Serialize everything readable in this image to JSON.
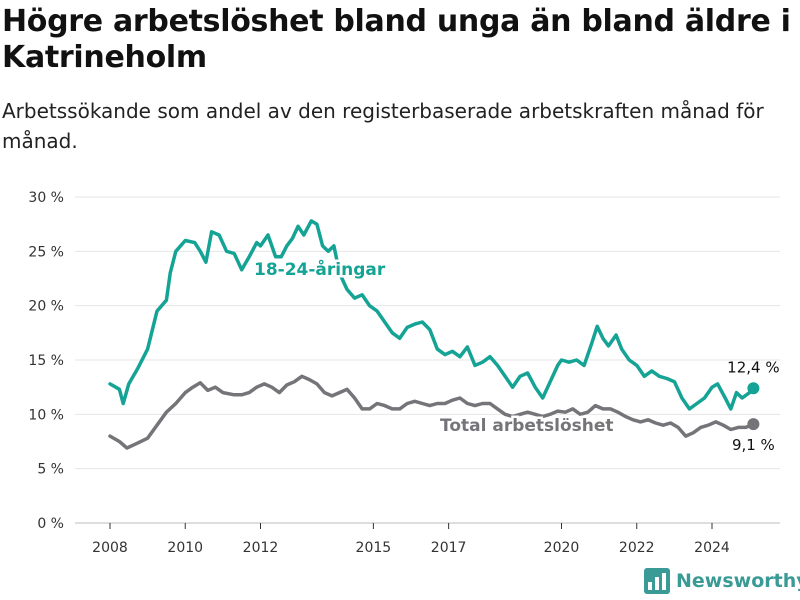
{
  "title": "Högre arbetslöshet bland unga än bland äldre i Katrineholm",
  "subtitle": "Arbetssökande som andel av den registerbaserade arbetskraften månad för månad.",
  "brand": "Newsworthy",
  "colors": {
    "youth": "#14a394",
    "total": "#757479",
    "grid": "#e6e6e6",
    "brand": "#3a9a96"
  },
  "chart_data": {
    "type": "line",
    "x_unit": "year",
    "ylim": [
      0,
      30
    ],
    "y_ticks": [
      0,
      5,
      10,
      15,
      20,
      25,
      30
    ],
    "y_tick_labels": [
      "0 %",
      "5 %",
      "10 %",
      "15 %",
      "20 %",
      "25 %",
      "30 %"
    ],
    "x_ticks": [
      2008,
      2010,
      2012,
      2015,
      2017,
      2020,
      2022,
      2024
    ],
    "x_tick_labels": [
      "2008",
      "2010",
      "2012",
      "2015",
      "2017",
      "2020",
      "2022",
      "2024"
    ],
    "grid": "horizontal",
    "series": [
      {
        "name": "18-24-åringar",
        "label": "18-24-åringar",
        "end_label": "12,4 %",
        "points": [
          [
            2008.0,
            12.8
          ],
          [
            2008.25,
            12.3
          ],
          [
            2008.35,
            11.0
          ],
          [
            2008.5,
            12.8
          ],
          [
            2008.75,
            14.3
          ],
          [
            2009.0,
            16.0
          ],
          [
            2009.25,
            19.5
          ],
          [
            2009.5,
            20.5
          ],
          [
            2009.6,
            23.0
          ],
          [
            2009.75,
            25.0
          ],
          [
            2010.0,
            26.0
          ],
          [
            2010.25,
            25.8
          ],
          [
            2010.4,
            25.0
          ],
          [
            2010.55,
            24.0
          ],
          [
            2010.7,
            26.8
          ],
          [
            2010.9,
            26.5
          ],
          [
            2011.1,
            25.0
          ],
          [
            2011.3,
            24.8
          ],
          [
            2011.5,
            23.3
          ],
          [
            2011.7,
            24.5
          ],
          [
            2011.9,
            25.8
          ],
          [
            2012.0,
            25.5
          ],
          [
            2012.2,
            26.5
          ],
          [
            2012.4,
            24.5
          ],
          [
            2012.55,
            24.5
          ],
          [
            2012.7,
            25.5
          ],
          [
            2012.85,
            26.2
          ],
          [
            2013.0,
            27.3
          ],
          [
            2013.15,
            26.5
          ],
          [
            2013.35,
            27.8
          ],
          [
            2013.5,
            27.5
          ],
          [
            2013.65,
            25.5
          ],
          [
            2013.8,
            25.0
          ],
          [
            2013.95,
            25.5
          ],
          [
            2014.1,
            23.0
          ],
          [
            2014.3,
            21.5
          ],
          [
            2014.5,
            20.7
          ],
          [
            2014.7,
            21.0
          ],
          [
            2014.9,
            20.0
          ],
          [
            2015.1,
            19.5
          ],
          [
            2015.3,
            18.5
          ],
          [
            2015.5,
            17.5
          ],
          [
            2015.7,
            17.0
          ],
          [
            2015.9,
            18.0
          ],
          [
            2016.1,
            18.3
          ],
          [
            2016.3,
            18.5
          ],
          [
            2016.5,
            17.8
          ],
          [
            2016.7,
            16.0
          ],
          [
            2016.9,
            15.5
          ],
          [
            2017.1,
            15.8
          ],
          [
            2017.3,
            15.3
          ],
          [
            2017.5,
            16.2
          ],
          [
            2017.7,
            14.5
          ],
          [
            2017.9,
            14.8
          ],
          [
            2018.1,
            15.3
          ],
          [
            2018.3,
            14.5
          ],
          [
            2018.5,
            13.5
          ],
          [
            2018.7,
            12.5
          ],
          [
            2018.9,
            13.5
          ],
          [
            2019.1,
            13.8
          ],
          [
            2019.3,
            12.5
          ],
          [
            2019.5,
            11.5
          ],
          [
            2019.7,
            13.0
          ],
          [
            2019.9,
            14.5
          ],
          [
            2020.0,
            15.0
          ],
          [
            2020.2,
            14.8
          ],
          [
            2020.4,
            15.0
          ],
          [
            2020.6,
            14.5
          ],
          [
            2020.8,
            16.5
          ],
          [
            2020.95,
            18.1
          ],
          [
            2021.1,
            17.0
          ],
          [
            2021.25,
            16.3
          ],
          [
            2021.45,
            17.3
          ],
          [
            2021.6,
            16.0
          ],
          [
            2021.8,
            15.0
          ],
          [
            2022.0,
            14.5
          ],
          [
            2022.2,
            13.5
          ],
          [
            2022.4,
            14.0
          ],
          [
            2022.6,
            13.5
          ],
          [
            2022.8,
            13.3
          ],
          [
            2023.0,
            13.0
          ],
          [
            2023.2,
            11.5
          ],
          [
            2023.4,
            10.5
          ],
          [
            2023.6,
            11.0
          ],
          [
            2023.8,
            11.5
          ],
          [
            2024.0,
            12.5
          ],
          [
            2024.15,
            12.8
          ],
          [
            2024.35,
            11.5
          ],
          [
            2024.5,
            10.5
          ],
          [
            2024.65,
            12.0
          ],
          [
            2024.8,
            11.5
          ],
          [
            2025.0,
            12.0
          ],
          [
            2025.1,
            12.4
          ]
        ]
      },
      {
        "name": "Total arbetslöshet",
        "label": "Total arbetslöshet",
        "end_label": "9,1 %",
        "points": [
          [
            2008.0,
            8.0
          ],
          [
            2008.25,
            7.5
          ],
          [
            2008.45,
            6.9
          ],
          [
            2008.7,
            7.3
          ],
          [
            2009.0,
            7.8
          ],
          [
            2009.25,
            9.0
          ],
          [
            2009.5,
            10.2
          ],
          [
            2009.75,
            11.0
          ],
          [
            2010.0,
            12.0
          ],
          [
            2010.2,
            12.5
          ],
          [
            2010.4,
            12.9
          ],
          [
            2010.6,
            12.2
          ],
          [
            2010.8,
            12.5
          ],
          [
            2011.0,
            12.0
          ],
          [
            2011.3,
            11.8
          ],
          [
            2011.5,
            11.8
          ],
          [
            2011.7,
            12.0
          ],
          [
            2011.9,
            12.5
          ],
          [
            2012.1,
            12.8
          ],
          [
            2012.3,
            12.5
          ],
          [
            2012.5,
            12.0
          ],
          [
            2012.7,
            12.7
          ],
          [
            2012.9,
            13.0
          ],
          [
            2013.1,
            13.5
          ],
          [
            2013.3,
            13.2
          ],
          [
            2013.5,
            12.8
          ],
          [
            2013.7,
            12.0
          ],
          [
            2013.9,
            11.7
          ],
          [
            2014.1,
            12.0
          ],
          [
            2014.3,
            12.3
          ],
          [
            2014.5,
            11.5
          ],
          [
            2014.7,
            10.5
          ],
          [
            2014.9,
            10.5
          ],
          [
            2015.1,
            11.0
          ],
          [
            2015.3,
            10.8
          ],
          [
            2015.5,
            10.5
          ],
          [
            2015.7,
            10.5
          ],
          [
            2015.9,
            11.0
          ],
          [
            2016.1,
            11.2
          ],
          [
            2016.3,
            11.0
          ],
          [
            2016.5,
            10.8
          ],
          [
            2016.7,
            11.0
          ],
          [
            2016.9,
            11.0
          ],
          [
            2017.1,
            11.3
          ],
          [
            2017.3,
            11.5
          ],
          [
            2017.5,
            11.0
          ],
          [
            2017.7,
            10.8
          ],
          [
            2017.9,
            11.0
          ],
          [
            2018.1,
            11.0
          ],
          [
            2018.3,
            10.5
          ],
          [
            2018.5,
            10.0
          ],
          [
            2018.7,
            9.8
          ],
          [
            2018.9,
            10.0
          ],
          [
            2019.1,
            10.2
          ],
          [
            2019.3,
            10.0
          ],
          [
            2019.5,
            9.8
          ],
          [
            2019.7,
            10.0
          ],
          [
            2019.9,
            10.3
          ],
          [
            2020.1,
            10.2
          ],
          [
            2020.3,
            10.5
          ],
          [
            2020.5,
            10.0
          ],
          [
            2020.7,
            10.2
          ],
          [
            2020.9,
            10.8
          ],
          [
            2021.1,
            10.5
          ],
          [
            2021.3,
            10.5
          ],
          [
            2021.5,
            10.2
          ],
          [
            2021.7,
            9.8
          ],
          [
            2021.9,
            9.5
          ],
          [
            2022.1,
            9.3
          ],
          [
            2022.3,
            9.5
          ],
          [
            2022.5,
            9.2
          ],
          [
            2022.7,
            9.0
          ],
          [
            2022.9,
            9.2
          ],
          [
            2023.1,
            8.8
          ],
          [
            2023.3,
            8.0
          ],
          [
            2023.5,
            8.3
          ],
          [
            2023.7,
            8.8
          ],
          [
            2023.9,
            9.0
          ],
          [
            2024.1,
            9.3
          ],
          [
            2024.3,
            9.0
          ],
          [
            2024.5,
            8.6
          ],
          [
            2024.7,
            8.8
          ],
          [
            2024.9,
            8.8
          ],
          [
            2025.1,
            9.1
          ]
        ]
      }
    ]
  }
}
